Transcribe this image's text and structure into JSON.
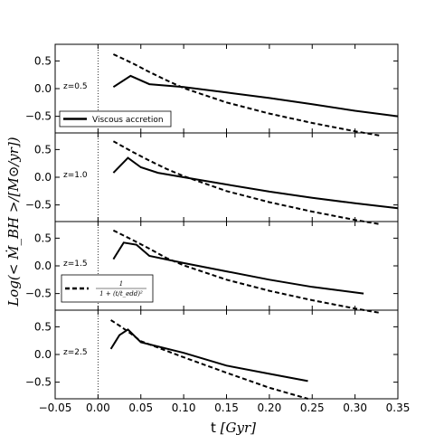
{
  "figure": {
    "xlabel_prefix": "t",
    "xlabel_unit": "[Gyr]",
    "ylabel": "Log(< Ṁ_BH >/[M⊙/yr])"
  },
  "chart_data": {
    "type": "line",
    "xlim": [
      -0.05,
      0.35
    ],
    "x_ticks": [
      -0.05,
      0.0,
      0.05,
      0.1,
      0.15,
      0.2,
      0.25,
      0.3,
      0.35
    ],
    "x_tick_labels": [
      "−0.05",
      "0.00",
      "0.05",
      "0.10",
      "0.15",
      "0.20",
      "0.25",
      "0.30",
      "0.35"
    ],
    "ylim": [
      -0.8,
      0.8
    ],
    "y_ticks": [
      0.5,
      0.0,
      -0.5
    ],
    "y_tick_labels": [
      "0.5",
      "0.0",
      "−0.5"
    ],
    "vline_x": 0.0,
    "legend": {
      "viscous": "Viscous accretion",
      "analytic_num": "1",
      "analytic_den": "1 + (t/t_edd)²"
    },
    "panels": [
      {
        "label": "z=0.5",
        "legend": "viscous",
        "series": [
          {
            "style": "solid",
            "x": [
              0.018,
              0.038,
              0.06,
              0.1,
              0.15,
              0.2,
              0.25,
              0.3,
              0.35
            ],
            "y": [
              0.03,
              0.23,
              0.08,
              0.03,
              -0.07,
              -0.17,
              -0.28,
              -0.4,
              -0.5
            ]
          },
          {
            "style": "dashed",
            "x": [
              0.018,
              0.04,
              0.06,
              0.08,
              0.1,
              0.15,
              0.2,
              0.25,
              0.3,
              0.33
            ],
            "y": [
              0.62,
              0.46,
              0.3,
              0.15,
              0.01,
              -0.25,
              -0.45,
              -0.62,
              -0.77,
              -0.85
            ]
          }
        ]
      },
      {
        "label": "z=1.0",
        "legend": null,
        "series": [
          {
            "style": "solid",
            "x": [
              0.018,
              0.035,
              0.05,
              0.07,
              0.1,
              0.15,
              0.2,
              0.25,
              0.3,
              0.35
            ],
            "y": [
              0.08,
              0.35,
              0.18,
              0.08,
              0.0,
              -0.13,
              -0.26,
              -0.37,
              -0.47,
              -0.56
            ]
          },
          {
            "style": "dashed",
            "x": [
              0.018,
              0.04,
              0.06,
              0.08,
              0.1,
              0.15,
              0.2,
              0.25,
              0.3,
              0.33
            ],
            "y": [
              0.65,
              0.46,
              0.3,
              0.15,
              0.02,
              -0.25,
              -0.45,
              -0.62,
              -0.77,
              -0.85
            ]
          }
        ]
      },
      {
        "label": "z=1.5",
        "legend": "analytic",
        "series": [
          {
            "style": "solid",
            "x": [
              0.018,
              0.03,
              0.045,
              0.06,
              0.1,
              0.15,
              0.2,
              0.25,
              0.31
            ],
            "y": [
              0.12,
              0.42,
              0.38,
              0.18,
              0.05,
              -0.1,
              -0.25,
              -0.38,
              -0.5
            ]
          },
          {
            "style": "dashed",
            "x": [
              0.018,
              0.04,
              0.06,
              0.08,
              0.1,
              0.15,
              0.2,
              0.25,
              0.3,
              0.33
            ],
            "y": [
              0.64,
              0.47,
              0.31,
              0.14,
              0.01,
              -0.25,
              -0.45,
              -0.62,
              -0.77,
              -0.85
            ]
          }
        ]
      },
      {
        "label": "z=2.5",
        "legend": null,
        "series": [
          {
            "style": "solid",
            "x": [
              0.015,
              0.025,
              0.035,
              0.05,
              0.1,
              0.15,
              0.2,
              0.245
            ],
            "y": [
              0.1,
              0.35,
              0.45,
              0.22,
              0.03,
              -0.2,
              -0.35,
              -0.48
            ]
          },
          {
            "style": "dashed",
            "x": [
              0.015,
              0.025,
              0.038,
              0.05,
              0.1,
              0.15,
              0.2,
              0.245
            ],
            "y": [
              0.62,
              0.52,
              0.38,
              0.24,
              -0.05,
              -0.33,
              -0.6,
              -0.8
            ]
          }
        ]
      }
    ]
  }
}
